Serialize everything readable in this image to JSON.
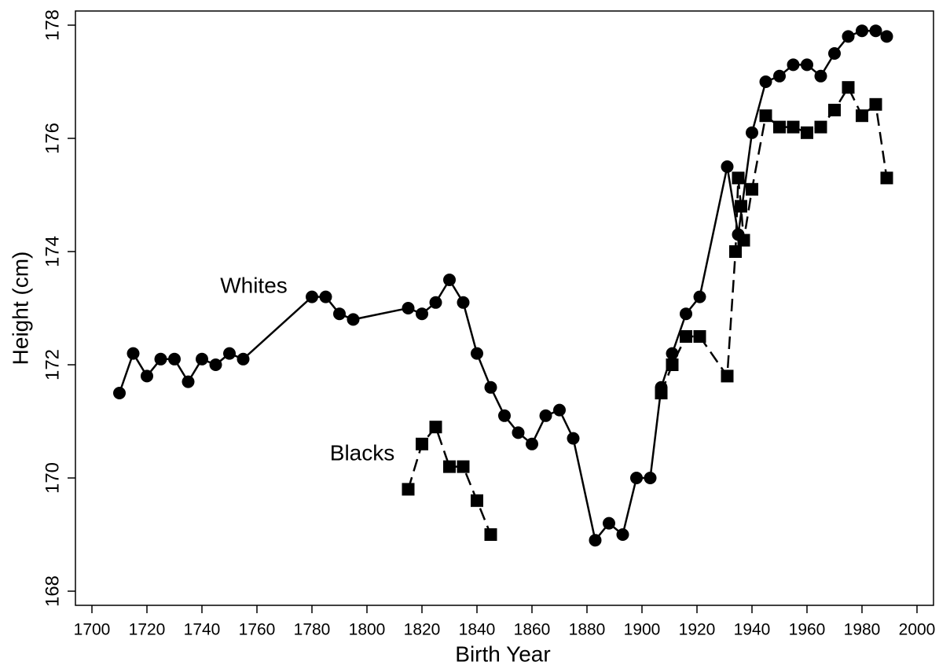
{
  "chart_data": {
    "type": "line",
    "xlabel": "Birth Year",
    "ylabel": "Height (cm)",
    "annotations": [
      "Whites",
      "Blacks"
    ],
    "xlim": [
      1694,
      2006
    ],
    "xticks": [
      1700,
      1720,
      1740,
      1760,
      1780,
      1800,
      1820,
      1840,
      1860,
      1880,
      1900,
      1920,
      1940,
      1960,
      1980,
      2000
    ],
    "ylim": [
      167.75,
      178.25
    ],
    "yticks": [
      168,
      170,
      172,
      174,
      176,
      178
    ],
    "grid": false,
    "series": [
      {
        "name": "Whites",
        "color": "#000000",
        "marker": "circle",
        "dash": false,
        "x": [
          1710,
          1715,
          1720,
          1725,
          1730,
          1735,
          1740,
          1745,
          1750,
          1755,
          1780,
          1785,
          1790,
          1795,
          1815,
          1820,
          1825,
          1830,
          1835,
          1840,
          1845,
          1850,
          1855,
          1860,
          1865,
          1870,
          1875,
          1883,
          1888,
          1893,
          1898,
          1903,
          1907,
          1911,
          1916,
          1921,
          1931,
          1935,
          1940,
          1945,
          1950,
          1955,
          1960,
          1965,
          1970,
          1975,
          1980,
          1985,
          1989
        ],
        "values": [
          171.5,
          172.2,
          171.8,
          172.1,
          172.1,
          171.7,
          172.1,
          172.0,
          172.2,
          172.1,
          173.2,
          173.2,
          172.9,
          172.8,
          173.0,
          172.9,
          173.1,
          173.5,
          173.1,
          172.2,
          171.6,
          171.1,
          170.8,
          170.6,
          171.1,
          171.2,
          170.7,
          168.9,
          169.2,
          169.0,
          170.0,
          170.0,
          171.6,
          172.2,
          172.9,
          173.2,
          175.5,
          174.3,
          176.1,
          177.0,
          177.1,
          177.3,
          177.3,
          177.1,
          177.5,
          177.8,
          177.9,
          177.9,
          177.8
        ]
      },
      {
        "name": "Blacks",
        "color": "#000000",
        "marker": "square",
        "dash": true,
        "x": [
          1815,
          1820,
          1825,
          1830,
          1835,
          1840,
          1845,
          1875,
          1907,
          1911,
          1916,
          1921,
          1931,
          1934,
          1935,
          1936,
          1937,
          1940,
          1945,
          1950,
          1955,
          1960,
          1965,
          1970,
          1975,
          1980,
          1985,
          1989
        ],
        "values": [
          169.8,
          170.6,
          170.9,
          170.2,
          170.2,
          169.6,
          169.0,
          null,
          171.5,
          172.0,
          172.5,
          172.5,
          171.8,
          174.0,
          175.3,
          174.8,
          174.2,
          175.1,
          176.4,
          176.2,
          176.2,
          176.1,
          176.2,
          176.5,
          176.9,
          176.4,
          176.6,
          175.3
        ]
      }
    ]
  }
}
